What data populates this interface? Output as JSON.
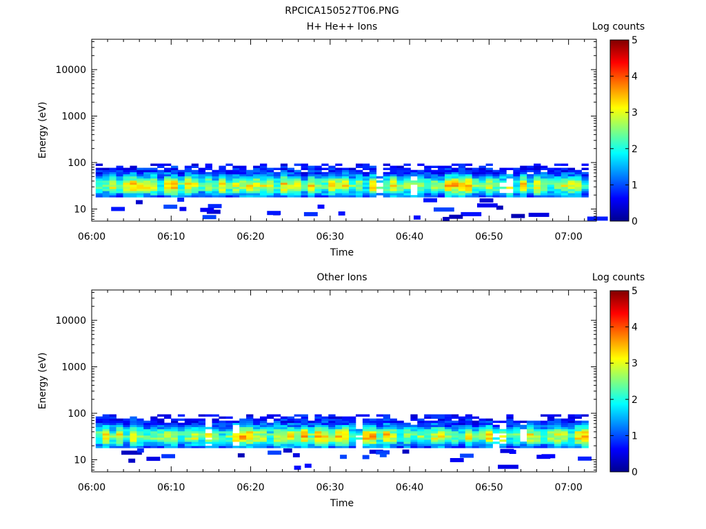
{
  "figure": {
    "title": "RPCICA150527T06.PNG"
  },
  "colors": {
    "colormap": [
      "#00008f",
      "#0000ff",
      "#0080ff",
      "#00ffff",
      "#80ff80",
      "#ffff00",
      "#ff8000",
      "#ff0000",
      "#800000"
    ]
  },
  "chart_data": [
    {
      "type": "heatmap",
      "title": "H+ He++ Ions",
      "xlabel": "Time",
      "ylabel": "Energy (eV)",
      "x_ticks": [
        "06:00",
        "06:10",
        "06:20",
        "06:30",
        "06:40",
        "06:50",
        "07:00"
      ],
      "x_tick_minutes": [
        0,
        10,
        20,
        30,
        40,
        50,
        60
      ],
      "xlim_minutes": [
        0,
        63.5
      ],
      "y_scale": "log",
      "y_ticks": [
        "10",
        "100",
        "1000",
        "10000"
      ],
      "y_tick_values": [
        10,
        100,
        1000,
        10000
      ],
      "ylim": [
        5.5,
        45000
      ],
      "colorbar": {
        "label": "Log counts",
        "ticks": [
          "0",
          "1",
          "2",
          "3",
          "4",
          "5"
        ],
        "range": [
          0,
          5
        ]
      },
      "dominant_band_eV": [
        18,
        95
      ],
      "peak_log_counts": 3.8,
      "scattered_low_energy_counts_eV": [
        6,
        16
      ],
      "grid": false,
      "seed": 17
    },
    {
      "type": "heatmap",
      "title": "Other Ions",
      "xlabel": "Time",
      "ylabel": "Energy (eV)",
      "x_ticks": [
        "06:00",
        "06:10",
        "06:20",
        "06:30",
        "06:40",
        "06:50",
        "07:00"
      ],
      "x_tick_minutes": [
        0,
        10,
        20,
        30,
        40,
        50,
        60
      ],
      "xlim_minutes": [
        0,
        63.5
      ],
      "y_scale": "log",
      "y_ticks": [
        "10",
        "100",
        "1000",
        "10000"
      ],
      "y_tick_values": [
        10,
        100,
        1000,
        10000
      ],
      "ylim": [
        5.5,
        45000
      ],
      "colorbar": {
        "label": "Log counts",
        "ticks": [
          "0",
          "1",
          "2",
          "3",
          "4",
          "5"
        ],
        "range": [
          0,
          5
        ]
      },
      "dominant_band_eV": [
        18,
        95
      ],
      "peak_log_counts": 3.8,
      "scattered_low_energy_counts_eV": [
        6,
        16
      ],
      "grid": false,
      "seed": 41
    }
  ]
}
